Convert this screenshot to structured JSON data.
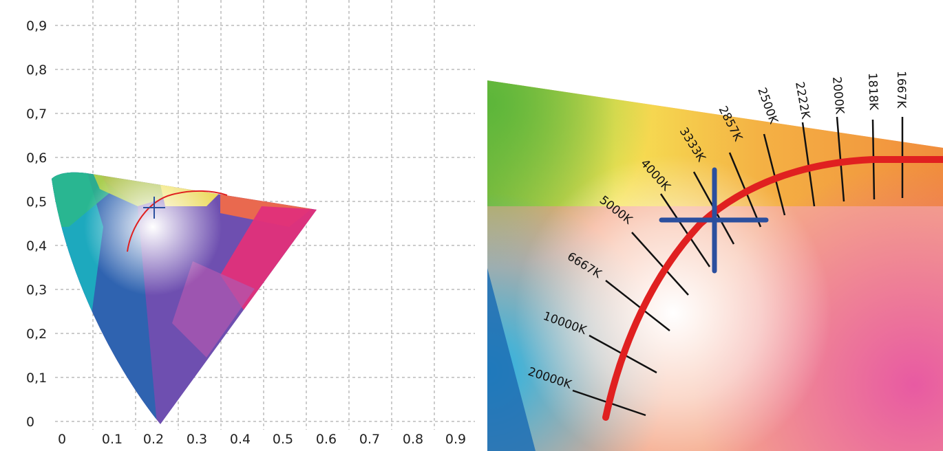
{
  "left_panel": {
    "y_tick_labels": [
      "0",
      "0,1",
      "0,2",
      "0,3",
      "0,4",
      "0,5",
      "0,6",
      "0,7",
      "0,8",
      "0,9"
    ],
    "x_tick_labels": [
      "0",
      "0.1",
      "0.2",
      "0.3",
      "0.4",
      "0.5",
      "0.6",
      "0.7",
      "0.8",
      "0.9"
    ],
    "marker": {
      "u": 0.2,
      "v": 0.5
    },
    "grid": true
  },
  "right_panel": {
    "cct_labels": [
      "20000K",
      "10000K",
      "6667K",
      "5000K",
      "4000K",
      "3333K",
      "2857K",
      "2500K",
      "2222K",
      "2000K",
      "1818K",
      "1667K"
    ]
  },
  "colors": {
    "locus": "#e02020",
    "marker": "#2b4f9e",
    "isotherm": "#111111",
    "grid": "#9a9a9a"
  }
}
